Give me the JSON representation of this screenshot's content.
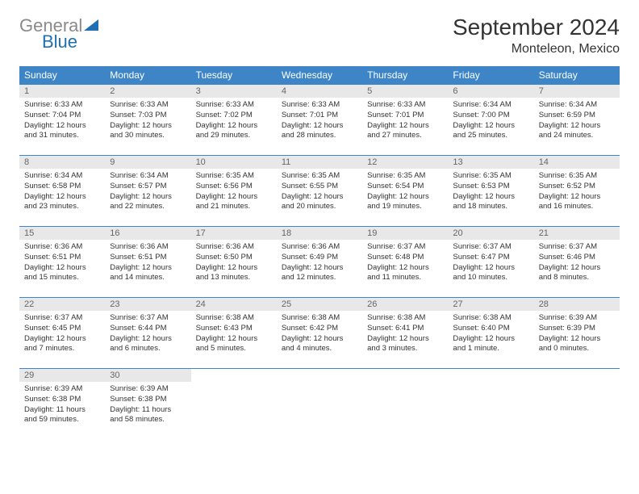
{
  "logo": {
    "line1": "General",
    "line2": "Blue"
  },
  "title": "September 2024",
  "location": "Monteleon, Mexico",
  "weekdays": [
    "Sunday",
    "Monday",
    "Tuesday",
    "Wednesday",
    "Thursday",
    "Friday",
    "Saturday"
  ],
  "colors": {
    "header_bg": "#3d85c6",
    "header_text": "#ffffff",
    "daynum_bg": "#e8e8e8",
    "daynum_text": "#666666",
    "row_border": "#3d85c6",
    "logo_gray": "#8a8a8a",
    "logo_blue": "#1f6fb2"
  },
  "typography": {
    "title_fontsize": 28,
    "location_fontsize": 16,
    "weekday_fontsize": 12,
    "body_fontsize": 9.5
  },
  "weeks": [
    [
      {
        "day": "1",
        "sunrise": "Sunrise: 6:33 AM",
        "sunset": "Sunset: 7:04 PM",
        "day1": "Daylight: 12 hours",
        "day2": "and 31 minutes."
      },
      {
        "day": "2",
        "sunrise": "Sunrise: 6:33 AM",
        "sunset": "Sunset: 7:03 PM",
        "day1": "Daylight: 12 hours",
        "day2": "and 30 minutes."
      },
      {
        "day": "3",
        "sunrise": "Sunrise: 6:33 AM",
        "sunset": "Sunset: 7:02 PM",
        "day1": "Daylight: 12 hours",
        "day2": "and 29 minutes."
      },
      {
        "day": "4",
        "sunrise": "Sunrise: 6:33 AM",
        "sunset": "Sunset: 7:01 PM",
        "day1": "Daylight: 12 hours",
        "day2": "and 28 minutes."
      },
      {
        "day": "5",
        "sunrise": "Sunrise: 6:33 AM",
        "sunset": "Sunset: 7:01 PM",
        "day1": "Daylight: 12 hours",
        "day2": "and 27 minutes."
      },
      {
        "day": "6",
        "sunrise": "Sunrise: 6:34 AM",
        "sunset": "Sunset: 7:00 PM",
        "day1": "Daylight: 12 hours",
        "day2": "and 25 minutes."
      },
      {
        "day": "7",
        "sunrise": "Sunrise: 6:34 AM",
        "sunset": "Sunset: 6:59 PM",
        "day1": "Daylight: 12 hours",
        "day2": "and 24 minutes."
      }
    ],
    [
      {
        "day": "8",
        "sunrise": "Sunrise: 6:34 AM",
        "sunset": "Sunset: 6:58 PM",
        "day1": "Daylight: 12 hours",
        "day2": "and 23 minutes."
      },
      {
        "day": "9",
        "sunrise": "Sunrise: 6:34 AM",
        "sunset": "Sunset: 6:57 PM",
        "day1": "Daylight: 12 hours",
        "day2": "and 22 minutes."
      },
      {
        "day": "10",
        "sunrise": "Sunrise: 6:35 AM",
        "sunset": "Sunset: 6:56 PM",
        "day1": "Daylight: 12 hours",
        "day2": "and 21 minutes."
      },
      {
        "day": "11",
        "sunrise": "Sunrise: 6:35 AM",
        "sunset": "Sunset: 6:55 PM",
        "day1": "Daylight: 12 hours",
        "day2": "and 20 minutes."
      },
      {
        "day": "12",
        "sunrise": "Sunrise: 6:35 AM",
        "sunset": "Sunset: 6:54 PM",
        "day1": "Daylight: 12 hours",
        "day2": "and 19 minutes."
      },
      {
        "day": "13",
        "sunrise": "Sunrise: 6:35 AM",
        "sunset": "Sunset: 6:53 PM",
        "day1": "Daylight: 12 hours",
        "day2": "and 18 minutes."
      },
      {
        "day": "14",
        "sunrise": "Sunrise: 6:35 AM",
        "sunset": "Sunset: 6:52 PM",
        "day1": "Daylight: 12 hours",
        "day2": "and 16 minutes."
      }
    ],
    [
      {
        "day": "15",
        "sunrise": "Sunrise: 6:36 AM",
        "sunset": "Sunset: 6:51 PM",
        "day1": "Daylight: 12 hours",
        "day2": "and 15 minutes."
      },
      {
        "day": "16",
        "sunrise": "Sunrise: 6:36 AM",
        "sunset": "Sunset: 6:51 PM",
        "day1": "Daylight: 12 hours",
        "day2": "and 14 minutes."
      },
      {
        "day": "17",
        "sunrise": "Sunrise: 6:36 AM",
        "sunset": "Sunset: 6:50 PM",
        "day1": "Daylight: 12 hours",
        "day2": "and 13 minutes."
      },
      {
        "day": "18",
        "sunrise": "Sunrise: 6:36 AM",
        "sunset": "Sunset: 6:49 PM",
        "day1": "Daylight: 12 hours",
        "day2": "and 12 minutes."
      },
      {
        "day": "19",
        "sunrise": "Sunrise: 6:37 AM",
        "sunset": "Sunset: 6:48 PM",
        "day1": "Daylight: 12 hours",
        "day2": "and 11 minutes."
      },
      {
        "day": "20",
        "sunrise": "Sunrise: 6:37 AM",
        "sunset": "Sunset: 6:47 PM",
        "day1": "Daylight: 12 hours",
        "day2": "and 10 minutes."
      },
      {
        "day": "21",
        "sunrise": "Sunrise: 6:37 AM",
        "sunset": "Sunset: 6:46 PM",
        "day1": "Daylight: 12 hours",
        "day2": "and 8 minutes."
      }
    ],
    [
      {
        "day": "22",
        "sunrise": "Sunrise: 6:37 AM",
        "sunset": "Sunset: 6:45 PM",
        "day1": "Daylight: 12 hours",
        "day2": "and 7 minutes."
      },
      {
        "day": "23",
        "sunrise": "Sunrise: 6:37 AM",
        "sunset": "Sunset: 6:44 PM",
        "day1": "Daylight: 12 hours",
        "day2": "and 6 minutes."
      },
      {
        "day": "24",
        "sunrise": "Sunrise: 6:38 AM",
        "sunset": "Sunset: 6:43 PM",
        "day1": "Daylight: 12 hours",
        "day2": "and 5 minutes."
      },
      {
        "day": "25",
        "sunrise": "Sunrise: 6:38 AM",
        "sunset": "Sunset: 6:42 PM",
        "day1": "Daylight: 12 hours",
        "day2": "and 4 minutes."
      },
      {
        "day": "26",
        "sunrise": "Sunrise: 6:38 AM",
        "sunset": "Sunset: 6:41 PM",
        "day1": "Daylight: 12 hours",
        "day2": "and 3 minutes."
      },
      {
        "day": "27",
        "sunrise": "Sunrise: 6:38 AM",
        "sunset": "Sunset: 6:40 PM",
        "day1": "Daylight: 12 hours",
        "day2": "and 1 minute."
      },
      {
        "day": "28",
        "sunrise": "Sunrise: 6:39 AM",
        "sunset": "Sunset: 6:39 PM",
        "day1": "Daylight: 12 hours",
        "day2": "and 0 minutes."
      }
    ],
    [
      {
        "day": "29",
        "sunrise": "Sunrise: 6:39 AM",
        "sunset": "Sunset: 6:38 PM",
        "day1": "Daylight: 11 hours",
        "day2": "and 59 minutes."
      },
      {
        "day": "30",
        "sunrise": "Sunrise: 6:39 AM",
        "sunset": "Sunset: 6:38 PM",
        "day1": "Daylight: 11 hours",
        "day2": "and 58 minutes."
      },
      {
        "empty": true
      },
      {
        "empty": true
      },
      {
        "empty": true
      },
      {
        "empty": true
      },
      {
        "empty": true
      }
    ]
  ]
}
